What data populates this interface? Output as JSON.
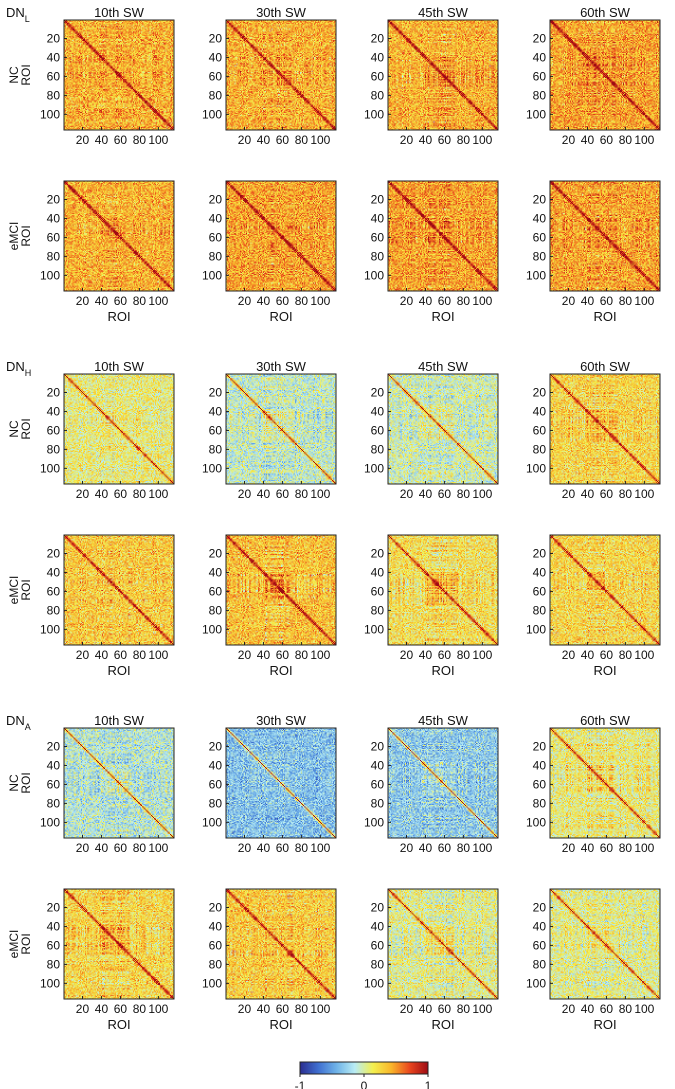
{
  "figure": {
    "colorbar": {
      "ticks": [
        "-1",
        "0",
        "1"
      ],
      "colors": [
        "#2a2d8f",
        "#3f6fd0",
        "#6fb3e8",
        "#b9ecf4",
        "#f3ef4e",
        "#f9b52a",
        "#e9461e",
        "#9e0b14"
      ]
    },
    "chart_data": {
      "type": "heatmap",
      "title": "",
      "value_range": [
        -1,
        1
      ],
      "n_rois": 116,
      "axis_label": "ROI",
      "tick_labels": [
        "20",
        "40",
        "60",
        "80",
        "100"
      ],
      "columns": [
        "10th SW",
        "30th SW",
        "45th SW",
        "60th SW"
      ],
      "panels": [
        {
          "label": "DN",
          "subscript": "L",
          "groups": [
            {
              "name": "NC",
              "matrices": [
                {
                  "window": "10th SW",
                  "mean_correlation": 0.4
                },
                {
                  "window": "30th SW",
                  "mean_correlation": 0.4
                },
                {
                  "window": "45th SW",
                  "mean_correlation": 0.4
                },
                {
                  "window": "60th SW",
                  "mean_correlation": 0.45
                }
              ]
            },
            {
              "name": "eMCI",
              "matrices": [
                {
                  "window": "10th SW",
                  "mean_correlation": 0.4
                },
                {
                  "window": "30th SW",
                  "mean_correlation": 0.45
                },
                {
                  "window": "45th SW",
                  "mean_correlation": 0.45
                },
                {
                  "window": "60th SW",
                  "mean_correlation": 0.45
                }
              ]
            }
          ]
        },
        {
          "label": "DN",
          "subscript": "H",
          "groups": [
            {
              "name": "NC",
              "matrices": [
                {
                  "window": "10th SW",
                  "mean_correlation": 0.1
                },
                {
                  "window": "30th SW",
                  "mean_correlation": -0.1
                },
                {
                  "window": "45th SW",
                  "mean_correlation": -0.05
                },
                {
                  "window": "60th SW",
                  "mean_correlation": 0.25
                }
              ]
            },
            {
              "name": "eMCI",
              "matrices": [
                {
                  "window": "10th SW",
                  "mean_correlation": 0.3
                },
                {
                  "window": "30th SW",
                  "mean_correlation": 0.35
                },
                {
                  "window": "45th SW",
                  "mean_correlation": 0.2
                },
                {
                  "window": "60th SW",
                  "mean_correlation": 0.25
                }
              ]
            }
          ]
        },
        {
          "label": "DN",
          "subscript": "A",
          "groups": [
            {
              "name": "NC",
              "matrices": [
                {
                  "window": "10th SW",
                  "mean_correlation": -0.15
                },
                {
                  "window": "30th SW",
                  "mean_correlation": -0.35
                },
                {
                  "window": "45th SW",
                  "mean_correlation": -0.3
                },
                {
                  "window": "60th SW",
                  "mean_correlation": 0.1
                }
              ]
            },
            {
              "name": "eMCI",
              "matrices": [
                {
                  "window": "10th SW",
                  "mean_correlation": 0.25
                },
                {
                  "window": "30th SW",
                  "mean_correlation": 0.3
                },
                {
                  "window": "45th SW",
                  "mean_correlation": 0.05
                },
                {
                  "window": "60th SW",
                  "mean_correlation": 0.05
                }
              ]
            }
          ]
        }
      ]
    }
  }
}
